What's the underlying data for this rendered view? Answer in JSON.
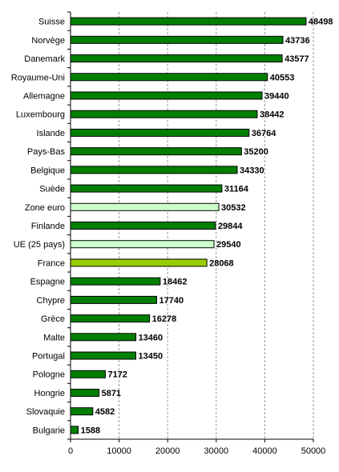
{
  "chart_data": {
    "type": "bar",
    "orientation": "horizontal",
    "categories": [
      "Suisse",
      "Norvège",
      "Danemark",
      "Royaume-Uni",
      "Allemagne",
      "Luxembourg",
      "Islande",
      "Pays-Bas",
      "Belgique",
      "Suède",
      "Zone euro",
      "Finlande",
      "UE (25 pays)",
      "France",
      "Espagne",
      "Chypre",
      "Grèce",
      "Malte",
      "Portugal",
      "Pologne",
      "Hongrie",
      "Slovaquie",
      "Bulgarie"
    ],
    "values": [
      48498,
      43736,
      43577,
      40553,
      39440,
      38442,
      36764,
      35200,
      34330,
      31164,
      30532,
      29844,
      29540,
      28068,
      18462,
      17740,
      16278,
      13460,
      13450,
      7172,
      5871,
      4582,
      1588
    ],
    "value_labels": [
      "48498",
      "43736",
      "43577",
      "40553",
      "39440",
      "38442",
      "36764",
      "35200",
      "34330",
      "31164",
      "30532",
      "29844",
      "29540",
      "28068",
      "18462",
      "17740",
      "16278",
      "13460",
      "13450",
      "7172",
      "5871",
      "4582",
      "1588"
    ],
    "bar_colors": [
      "#007F00",
      "#007F00",
      "#007F00",
      "#007F00",
      "#007F00",
      "#007F00",
      "#007F00",
      "#007F00",
      "#007F00",
      "#007F00",
      "#CCFFCC",
      "#007F00",
      "#CCFFCC",
      "#99CC00",
      "#007F00",
      "#007F00",
      "#007F00",
      "#007F00",
      "#007F00",
      "#007F00",
      "#007F00",
      "#007F00",
      "#007F00"
    ],
    "xlim": [
      0,
      50000
    ],
    "x_ticks": [
      0,
      10000,
      20000,
      30000,
      40000,
      50000
    ],
    "x_tick_labels": [
      "0",
      "10000",
      "20000",
      "30000",
      "40000",
      "50000"
    ],
    "grid": "vertical dashed",
    "legend": "none",
    "title": "",
    "xlabel": "",
    "ylabel": ""
  }
}
